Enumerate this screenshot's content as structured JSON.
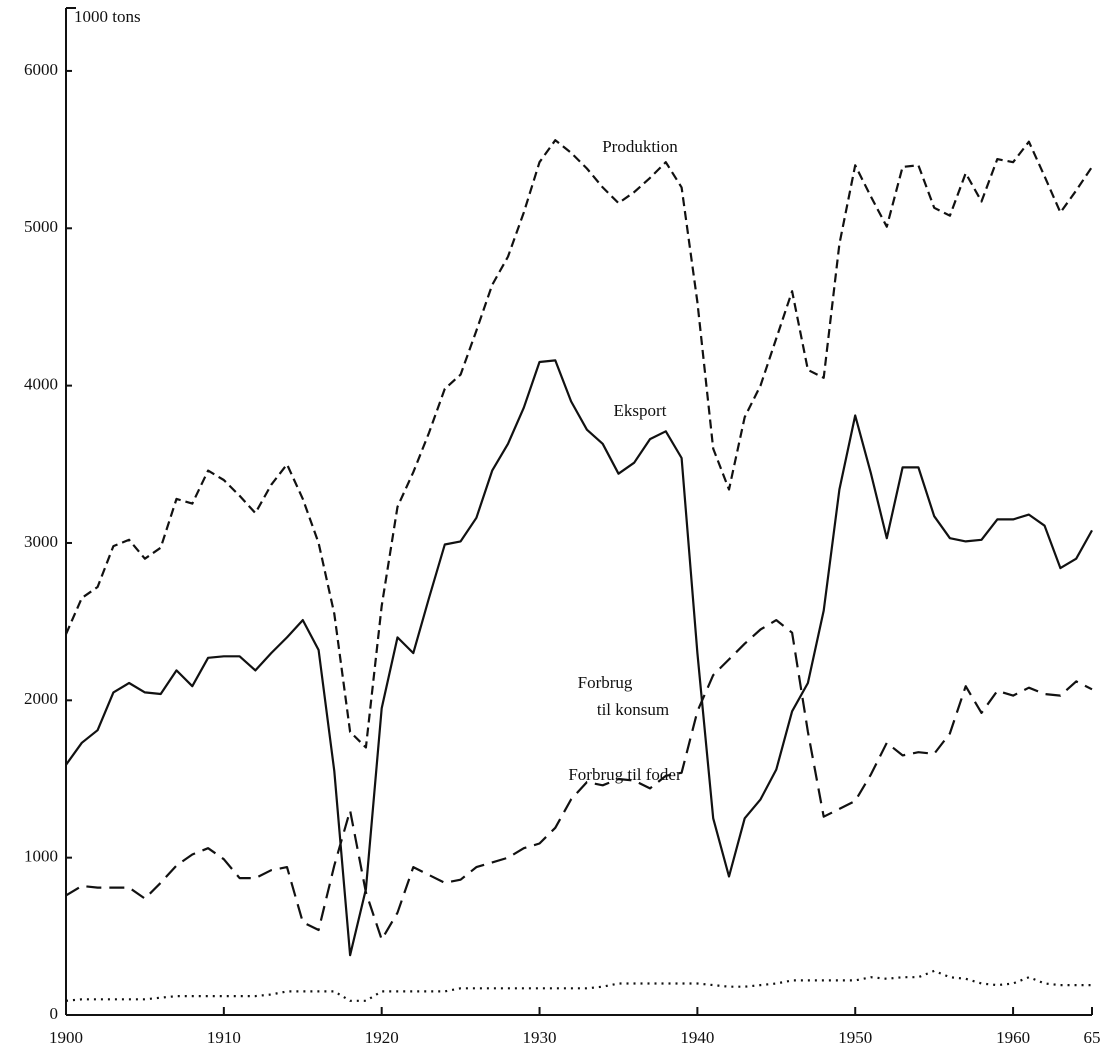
{
  "chart_data": {
    "type": "line",
    "y_unit_label": "1000 tons",
    "x": [
      1900,
      1901,
      1902,
      1903,
      1904,
      1905,
      1906,
      1907,
      1908,
      1909,
      1910,
      1911,
      1912,
      1913,
      1914,
      1915,
      1916,
      1917,
      1918,
      1919,
      1920,
      1921,
      1922,
      1923,
      1924,
      1925,
      1926,
      1927,
      1928,
      1929,
      1930,
      1931,
      1932,
      1933,
      1934,
      1935,
      1936,
      1937,
      1938,
      1939,
      1940,
      1941,
      1942,
      1943,
      1944,
      1945,
      1946,
      1947,
      1948,
      1949,
      1950,
      1951,
      1952,
      1953,
      1954,
      1955,
      1956,
      1957,
      1958,
      1959,
      1960,
      1961,
      1962,
      1963,
      1964,
      1965
    ],
    "xlim": [
      1900,
      1965
    ],
    "xticks": [
      1900,
      1910,
      1920,
      1930,
      1940,
      1950,
      1960,
      {
        "value": 1965,
        "label": "65"
      }
    ],
    "ylim": [
      0,
      6400
    ],
    "yticks": [
      0,
      1000,
      2000,
      3000,
      4000,
      5000,
      6000
    ],
    "series": [
      {
        "name": "Produktion",
        "color": "#111111",
        "dash": "dashed",
        "values": [
          2420,
          2650,
          2720,
          2980,
          3020,
          2900,
          2970,
          3280,
          3250,
          3460,
          3400,
          3300,
          3190,
          3370,
          3500,
          3280,
          3000,
          2550,
          1800,
          1700,
          2600,
          3230,
          3450,
          3700,
          3980,
          4070,
          4350,
          4640,
          4820,
          5100,
          5420,
          5560,
          5480,
          5380,
          5260,
          5160,
          5230,
          5320,
          5420,
          5260,
          4530,
          3600,
          3340,
          3800,
          4000,
          4300,
          4600,
          4100,
          4050,
          4900,
          5400,
          5200,
          5010,
          5390,
          5400,
          5130,
          5080,
          5350,
          5170,
          5440,
          5420,
          5550,
          5330,
          5100,
          5240,
          5390
        ]
      },
      {
        "name": "Eksport",
        "color": "#111111",
        "dash": "solid",
        "values": [
          1590,
          1730,
          1810,
          2050,
          2110,
          2050,
          2040,
          2190,
          2090,
          2270,
          2280,
          2280,
          2190,
          2300,
          2400,
          2510,
          2320,
          1550,
          380,
          800,
          1950,
          2400,
          2300,
          2650,
          2990,
          3010,
          3160,
          3460,
          3630,
          3860,
          4150,
          4160,
          3900,
          3720,
          3630,
          3440,
          3510,
          3660,
          3710,
          3540,
          2300,
          1250,
          880,
          1250,
          1370,
          1560,
          1930,
          2110,
          2570,
          3340,
          3810,
          3440,
          3030,
          3480,
          3480,
          3170,
          3030,
          3010,
          3020,
          3150,
          3150,
          3180,
          3110,
          2840,
          2900,
          3080
        ]
      },
      {
        "label_lines": [
          "Forbrug",
          "til konsum"
        ],
        "color": "#111111",
        "dash": "longdash",
        "values": [
          760,
          820,
          810,
          810,
          810,
          740,
          840,
          950,
          1020,
          1060,
          990,
          870,
          870,
          920,
          940,
          590,
          540,
          950,
          1300,
          780,
          480,
          650,
          940,
          890,
          840,
          860,
          940,
          970,
          1000,
          1060,
          1090,
          1190,
          1370,
          1480,
          1460,
          1500,
          1490,
          1440,
          1520,
          1540,
          1930,
          2160,
          2260,
          2360,
          2450,
          2510,
          2430,
          1800,
          1260,
          1310,
          1360,
          1530,
          1730,
          1650,
          1670,
          1660,
          1790,
          2090,
          1920,
          2060,
          2030,
          2080,
          2040,
          2030,
          2120,
          2070
        ]
      },
      {
        "name": "Forbrug til foder",
        "color": "#111111",
        "dash": "dotted",
        "values": [
          90,
          100,
          100,
          100,
          100,
          100,
          110,
          120,
          120,
          120,
          120,
          120,
          120,
          130,
          150,
          150,
          150,
          150,
          90,
          90,
          150,
          150,
          150,
          150,
          150,
          170,
          170,
          170,
          170,
          170,
          170,
          170,
          170,
          170,
          180,
          200,
          200,
          200,
          200,
          200,
          200,
          190,
          180,
          180,
          190,
          200,
          220,
          220,
          220,
          220,
          220,
          240,
          230,
          240,
          240,
          280,
          240,
          230,
          200,
          190,
          200,
          240,
          200,
          190,
          190,
          190
        ]
      }
    ]
  }
}
